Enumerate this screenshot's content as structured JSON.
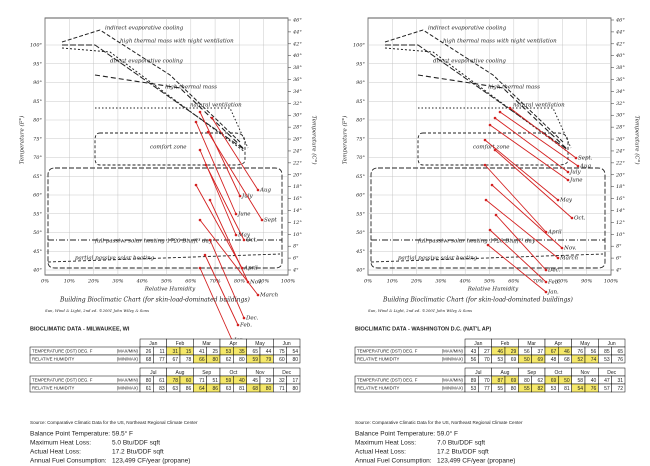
{
  "panels": [
    {
      "chart": {
        "y_left_ticks": [
          "100°",
          "95°",
          "90°",
          "85°",
          "80°",
          "75°",
          "70°",
          "65°",
          "60°",
          "55°",
          "50°",
          "45°",
          "40°"
        ],
        "y_right_ticks": [
          "46°",
          "44°",
          "42°",
          "40°",
          "38°",
          "36°",
          "34°",
          "32°",
          "30°",
          "28°",
          "26°",
          "24°",
          "22°",
          "20°",
          "18°",
          "16°",
          "14°",
          "12°",
          "10°",
          "8°",
          "6°",
          "4°"
        ],
        "x_ticks": [
          "0%",
          "10%",
          "20%",
          "30%",
          "40%",
          "50%",
          "60%",
          "70%",
          "80%",
          "90%",
          "100%"
        ],
        "x_axis_label": "Relative Humidity",
        "y_left_axis_label": "Temperature (F°)",
        "y_right_axis_label": "Temperature (C°)",
        "zones": [
          "indirect evaporative cooling",
          "high thermal mass with night ventilation",
          "direct evaporative cooling",
          "high thermal mass",
          "natural ventilation",
          "comfort zone",
          "full passive solar heating 1720 Btu/ft² day",
          "partial passive solar heating"
        ],
        "months": [
          "July",
          "Aug",
          "June",
          "Sept",
          "May",
          "Oct.",
          "April",
          "Nov.",
          "March",
          "Dec.",
          "Feb.",
          "Jan."
        ],
        "caption": "Building Bioclimatic Chart (for skin-load-dominated buildings)",
        "credit": "Sun, Wind & Light, 2nd ed. ©2001 John Wiley & Sons"
      },
      "table": {
        "title": "BIOCLIMATIC DATA - MILWAUKEE, WI",
        "blocks": [
          {
            "months": [
              "Jan",
              "Feb",
              "Mar",
              "Apr",
              "May",
              "Jun"
            ],
            "rows": [
              {
                "label": "TEMPERATURE (DST) DEG. F",
                "unit": "(MAX/MIN)",
                "values": [
                  26,
                  11,
                  31,
                  15,
                  41,
                  25,
                  53,
                  35,
                  65,
                  44,
                  75,
                  54
                ]
              },
              {
                "label": "RELATIVE HUMIDITY",
                "unit": "(MIN/MAX)",
                "values": [
                  68,
                  77,
                  67,
                  78,
                  66,
                  80,
                  62,
                  80,
                  59,
                  79,
                  60,
                  80
                ]
              }
            ]
          },
          {
            "months": [
              "Jul",
              "Aug",
              "Sep",
              "Oct",
              "Nov",
              "Dec"
            ],
            "rows": [
              {
                "label": "TEMPERATURE (DST) DEG. F",
                "unit": "(MAX/MIN)",
                "values": [
                  80,
                  61,
                  78,
                  60,
                  71,
                  51,
                  59,
                  40,
                  45,
                  29,
                  32,
                  17
                ]
              },
              {
                "label": "RELATIVE HUMIDITY",
                "unit": "(MIN/MAX)",
                "values": [
                  61,
                  83,
                  63,
                  86,
                  64,
                  86,
                  63,
                  81,
                  68,
                  80,
                  71,
                  80
                ]
              }
            ]
          }
        ]
      },
      "source": "Source: Comparative Climatic Data for the US, Northeast Regional Climate Center",
      "summary": [
        {
          "label": "Balance Point Temperature:",
          "value": "59.5° F"
        },
        {
          "label": "Maximum Heat Loss:",
          "value": "5.0  Btu/DDF sqft"
        },
        {
          "label": "Actual Heat Loss:",
          "value": "17.2 Btu/DDF sqft"
        },
        {
          "label": "Annual Fuel Consumption:",
          "value": "123,499 CF/year (propane)"
        }
      ]
    },
    {
      "chart": {
        "y_left_ticks": [
          "100°",
          "95°",
          "90°",
          "85°",
          "80°",
          "75°",
          "70°",
          "65°",
          "60°",
          "55°",
          "50°",
          "45°",
          "40°"
        ],
        "y_right_ticks": [
          "46°",
          "44°",
          "42°",
          "40°",
          "38°",
          "36°",
          "34°",
          "32°",
          "30°",
          "28°",
          "26°",
          "24°",
          "22°",
          "20°",
          "18°",
          "16°",
          "14°",
          "12°",
          "10°",
          "8°",
          "6°",
          "4°"
        ],
        "x_ticks": [
          "0%",
          "10%",
          "20%",
          "30%",
          "40%",
          "50%",
          "60%",
          "70%",
          "80%",
          "90%",
          "100%"
        ],
        "x_axis_label": "Relative Humidity",
        "y_left_axis_label": "Temperature (F°)",
        "y_right_axis_label": "Temperature (C°)",
        "zones": [
          "indirect evaporative cooling",
          "high thermal mass with night ventilation",
          "direct evaporative cooling",
          "high thermal mass",
          "natural ventilation",
          "comfort zone",
          "full passive solar heating 1720 Btu/ft² day",
          "partial passive solar heating"
        ],
        "months": [
          "Sept.",
          "Aug",
          "July",
          "June",
          "May",
          "Oct.",
          "April",
          "Nov.",
          "March",
          "Dec.",
          "Feb.",
          "Jan."
        ],
        "caption": "Building Bioclimatic Chart (for skin-load-dominated buildings)",
        "credit": "Sun, Wind & Light, 2nd ed. ©2001 John Wiley & Sons"
      },
      "table": {
        "title": "BIOCLIMATIC DATA - WASHINGTON D.C. (NAT'L AP)",
        "blocks": [
          {
            "months": [
              "Jan",
              "Feb",
              "Mar",
              "Apr",
              "May",
              "Jun"
            ],
            "rows": [
              {
                "label": "TEMPERATURE (DST) DEG. F",
                "unit": "(MAX/MIN)",
                "values": [
                  43,
                  27,
                  46,
                  29,
                  56,
                  37,
                  67,
                  46,
                  76,
                  56,
                  85,
                  65
                ]
              },
              {
                "label": "RELATIVE HUMIDITY",
                "unit": "(MIN/MAX)",
                "values": [
                  56,
                  70,
                  53,
                  69,
                  50,
                  69,
                  48,
                  68,
                  52,
                  74,
                  53,
                  76
                ]
              }
            ]
          },
          {
            "months": [
              "Jul",
              "Aug",
              "Sep",
              "Oct",
              "Nov",
              "Dec"
            ],
            "rows": [
              {
                "label": "TEMPERATURE (DST) DEG. F",
                "unit": "(MAX/MIN)",
                "values": [
                  89,
                  70,
                  87,
                  69,
                  80,
                  62,
                  69,
                  50,
                  58,
                  40,
                  47,
                  31
                ]
              },
              {
                "label": "RELATIVE HUMIDITY",
                "unit": "(MIN/MAX)",
                "values": [
                  53,
                  77,
                  55,
                  80,
                  55,
                  82,
                  53,
                  81,
                  54,
                  76,
                  57,
                  72
                ]
              }
            ]
          }
        ]
      },
      "source": "Source: Comparative Climatic Data for the US, Northeast Regional Climate Center",
      "summary": [
        {
          "label": "Balance Point Temperature:",
          "value": "59.0° F"
        },
        {
          "label": "Maximum Heat Loss:",
          "value": "7.0  Btu/DDF sqft"
        },
        {
          "label": "Actual Heat Loss:",
          "value": "17.2 Btu/DDF sqft"
        },
        {
          "label": "Annual Fuel Consumption:",
          "value": "123,499 CF/year (propane)"
        }
      ]
    }
  ]
}
